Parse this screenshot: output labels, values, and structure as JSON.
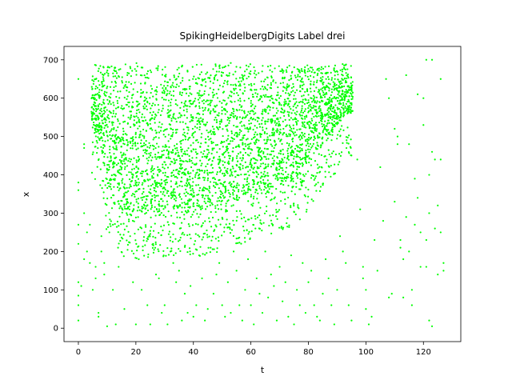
{
  "chart_data": {
    "type": "scatter",
    "title": "SpikingHeidelbergDigits Label drei",
    "xlabel": "t",
    "ylabel": "x",
    "xlim": [
      -5,
      133
    ],
    "ylim": [
      -35,
      735
    ],
    "xticks": [
      0,
      20,
      40,
      60,
      80,
      100,
      120
    ],
    "yticks": [
      0,
      100,
      200,
      300,
      400,
      500,
      600,
      700
    ],
    "grid": false,
    "legend": "none",
    "marker_color": "#00ff00",
    "series": [
      {
        "points_summary": "dense spike raster",
        "dense_region": {
          "t_start": 5,
          "t_end": 95,
          "x_top": 695
        },
        "sparse_points": [
          [
            0,
            650
          ],
          [
            0,
            380
          ],
          [
            0,
            360
          ],
          [
            0,
            270
          ],
          [
            0,
            220
          ],
          [
            0,
            120
          ],
          [
            0,
            85
          ],
          [
            0,
            60
          ],
          [
            0,
            20
          ],
          [
            1,
            110
          ],
          [
            2,
            480
          ],
          [
            2,
            470
          ],
          [
            2,
            300
          ],
          [
            2,
            180
          ],
          [
            3,
            250
          ],
          [
            3,
            200
          ],
          [
            4,
            270
          ],
          [
            4,
            170
          ],
          [
            5,
            100
          ],
          [
            6,
            160
          ],
          [
            6,
            130
          ],
          [
            7,
            40
          ],
          [
            7,
            30
          ],
          [
            8,
            240
          ],
          [
            8,
            200
          ],
          [
            9,
            170
          ],
          [
            9,
            140
          ],
          [
            9,
            430
          ],
          [
            10,
            5
          ],
          [
            12,
            270
          ],
          [
            12,
            100
          ],
          [
            13,
            10
          ],
          [
            14,
            160
          ],
          [
            16,
            50
          ],
          [
            18,
            240
          ],
          [
            19,
            120
          ],
          [
            20,
            10
          ],
          [
            21,
            180
          ],
          [
            22,
            100
          ],
          [
            23,
            250
          ],
          [
            24,
            60
          ],
          [
            25,
            10
          ],
          [
            26,
            220
          ],
          [
            27,
            140
          ],
          [
            28,
            130
          ],
          [
            29,
            40
          ],
          [
            30,
            60
          ],
          [
            31,
            10
          ],
          [
            32,
            200
          ],
          [
            33,
            170
          ],
          [
            34,
            120
          ],
          [
            35,
            150
          ],
          [
            36,
            20
          ],
          [
            37,
            90
          ],
          [
            38,
            40
          ],
          [
            39,
            110
          ],
          [
            40,
            30
          ],
          [
            41,
            60
          ],
          [
            42,
            190
          ],
          [
            43,
            130
          ],
          [
            44,
            20
          ],
          [
            45,
            50
          ],
          [
            46,
            210
          ],
          [
            47,
            90
          ],
          [
            48,
            140
          ],
          [
            49,
            170
          ],
          [
            50,
            60
          ],
          [
            51,
            30
          ],
          [
            52,
            120
          ],
          [
            53,
            40
          ],
          [
            54,
            200
          ],
          [
            55,
            150
          ],
          [
            56,
            60
          ],
          [
            57,
            20
          ],
          [
            58,
            100
          ],
          [
            59,
            180
          ],
          [
            60,
            60
          ],
          [
            61,
            10
          ],
          [
            62,
            130
          ],
          [
            63,
            90
          ],
          [
            64,
            40
          ],
          [
            65,
            200
          ],
          [
            66,
            80
          ],
          [
            67,
            140
          ],
          [
            68,
            110
          ],
          [
            69,
            20
          ],
          [
            70,
            160
          ],
          [
            71,
            70
          ],
          [
            72,
            120
          ],
          [
            73,
            30
          ],
          [
            74,
            190
          ],
          [
            75,
            10
          ],
          [
            76,
            100
          ],
          [
            77,
            60
          ],
          [
            78,
            170
          ],
          [
            79,
            40
          ],
          [
            80,
            120
          ],
          [
            81,
            150
          ],
          [
            82,
            60
          ],
          [
            83,
            30
          ],
          [
            84,
            20
          ],
          [
            85,
            90
          ],
          [
            86,
            180
          ],
          [
            87,
            130
          ],
          [
            88,
            60
          ],
          [
            89,
            10
          ],
          [
            90,
            100
          ],
          [
            91,
            240
          ],
          [
            92,
            200
          ],
          [
            93,
            170
          ],
          [
            94,
            60
          ],
          [
            95,
            20
          ],
          [
            97,
            440
          ],
          [
            98,
            310
          ],
          [
            99,
            160
          ],
          [
            99,
            130
          ],
          [
            100,
            100
          ],
          [
            100,
            50
          ],
          [
            101,
            10
          ],
          [
            102,
            30
          ],
          [
            103,
            230
          ],
          [
            104,
            150
          ],
          [
            105,
            420
          ],
          [
            106,
            280
          ],
          [
            107,
            650
          ],
          [
            108,
            600
          ],
          [
            108,
            80
          ],
          [
            109,
            90
          ],
          [
            110,
            520
          ],
          [
            110,
            330
          ],
          [
            111,
            480
          ],
          [
            111,
            500
          ],
          [
            112,
            230
          ],
          [
            112,
            210
          ],
          [
            113,
            180
          ],
          [
            113,
            80
          ],
          [
            114,
            660
          ],
          [
            114,
            290
          ],
          [
            115,
            480
          ],
          [
            115,
            200
          ],
          [
            116,
            100
          ],
          [
            116,
            60
          ],
          [
            117,
            390
          ],
          [
            117,
            270
          ],
          [
            118,
            610
          ],
          [
            118,
            340
          ],
          [
            119,
            250
          ],
          [
            119,
            160
          ],
          [
            120,
            600
          ],
          [
            120,
            530
          ],
          [
            121,
            700
          ],
          [
            121,
            230
          ],
          [
            122,
            400
          ],
          [
            122,
            300
          ],
          [
            123,
            700
          ],
          [
            123,
            460
          ],
          [
            123,
            5
          ],
          [
            124,
            440
          ],
          [
            124,
            260
          ],
          [
            125,
            320
          ],
          [
            125,
            140
          ],
          [
            126,
            650
          ],
          [
            126,
            440
          ],
          [
            126,
            250
          ],
          [
            127,
            170
          ],
          [
            127,
            150
          ],
          [
            122,
            20
          ],
          [
            121,
            160
          ]
        ]
      }
    ]
  }
}
